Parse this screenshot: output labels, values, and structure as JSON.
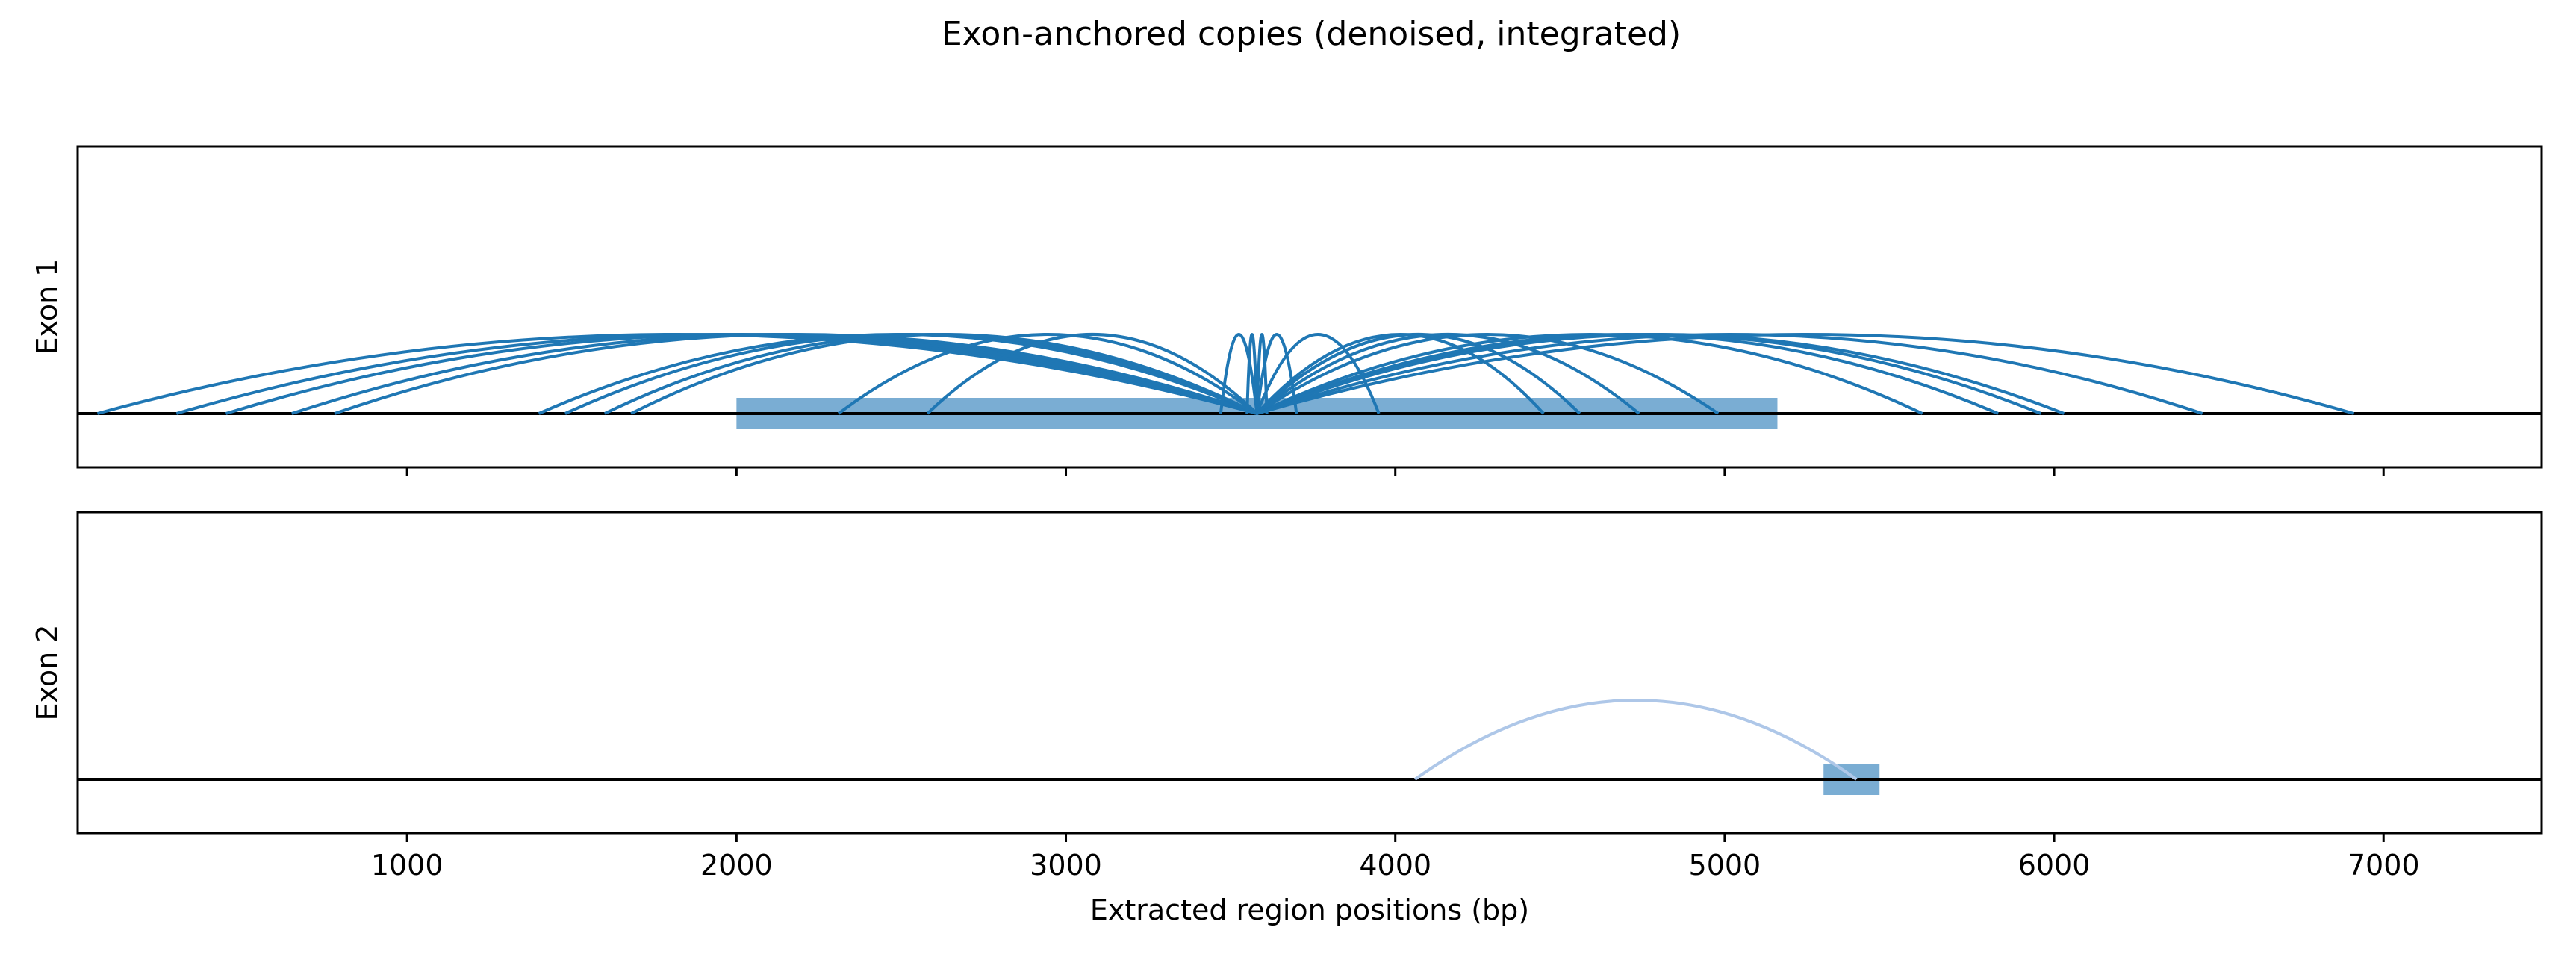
{
  "chart_data": {
    "type": "arc",
    "title": "Exon-anchored copies (denoised, integrated)",
    "xlabel": "Extracted region positions (bp)",
    "xlim": [
      0,
      7480
    ],
    "xticks": [
      1000,
      2000,
      3000,
      4000,
      5000,
      6000,
      7000
    ],
    "colors": {
      "arc": "#1f77b4",
      "arc_light": "#aec7e8",
      "block": "#7aadd3",
      "axis": "#000000"
    },
    "panels": [
      {
        "ylabel": "Exon 1",
        "anchor": 3580,
        "block": [
          2000,
          5160
        ],
        "arcs": [
          {
            "target": 60,
            "height": 1.0
          },
          {
            "target": 300,
            "height": 1.0
          },
          {
            "target": 450,
            "height": 1.0
          },
          {
            "target": 650,
            "height": 1.0
          },
          {
            "target": 780,
            "height": 1.0
          },
          {
            "target": 1400,
            "height": 1.0
          },
          {
            "target": 1480,
            "height": 1.0
          },
          {
            "target": 1600,
            "height": 1.0
          },
          {
            "target": 1680,
            "height": 1.0
          },
          {
            "target": 2310,
            "height": 1.0
          },
          {
            "target": 2580,
            "height": 1.0
          },
          {
            "target": 3470,
            "height": 1.0
          },
          {
            "target": 3550,
            "height": 1.0
          },
          {
            "target": 3610,
            "height": 1.0
          },
          {
            "target": 3700,
            "height": 1.0
          },
          {
            "target": 3950,
            "height": 1.0
          },
          {
            "target": 4450,
            "height": 1.0
          },
          {
            "target": 4560,
            "height": 1.0
          },
          {
            "target": 4740,
            "height": 1.0
          },
          {
            "target": 4980,
            "height": 1.0
          },
          {
            "target": 5600,
            "height": 1.0
          },
          {
            "target": 5830,
            "height": 1.0
          },
          {
            "target": 5960,
            "height": 1.0
          },
          {
            "target": 6030,
            "height": 1.0
          },
          {
            "target": 6450,
            "height": 1.0
          },
          {
            "target": 6910,
            "height": 1.0
          }
        ]
      },
      {
        "ylabel": "Exon 2",
        "anchor": 5400,
        "block": [
          5300,
          5470
        ],
        "arcs": [
          {
            "target": 4060,
            "height": 1.0,
            "light": true
          }
        ]
      }
    ]
  }
}
